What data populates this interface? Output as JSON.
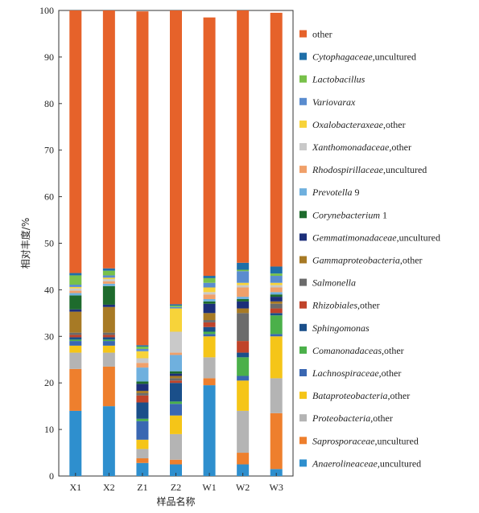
{
  "chart_data": {
    "type": "bar",
    "stacked": true,
    "xlabel": "样品名称",
    "ylabel": "相对丰度/%",
    "ylim": [
      0,
      100
    ],
    "yticks": [
      0,
      10,
      20,
      30,
      40,
      50,
      60,
      70,
      80,
      90,
      100
    ],
    "categories": [
      "X1",
      "X2",
      "Z1",
      "Z2",
      "W1",
      "W2",
      "W3"
    ],
    "legend_position": "right",
    "series": [
      {
        "name": "Anaerolineaceae,uncultured",
        "italic": "Anaerolineaceae",
        "rest": ",uncultured",
        "color": "#2e8fce",
        "values": [
          14.0,
          15.0,
          2.8,
          2.5,
          19.5,
          2.5,
          1.5
        ]
      },
      {
        "name": "Saprosporaceae,uncultured",
        "italic": "Saprosporaceae",
        "rest": ",uncultured",
        "color": "#ee7f2d",
        "values": [
          9.0,
          8.5,
          1.0,
          1.0,
          1.5,
          2.5,
          12.0
        ]
      },
      {
        "name": "Proteobacteria,other",
        "italic": "Proteobacteria",
        "rest": ",other",
        "color": "#b4b4b4",
        "values": [
          3.5,
          3.0,
          2.0,
          5.5,
          4.5,
          9.0,
          7.5
        ]
      },
      {
        "name": "Bataproteobacteria,other",
        "italic": "Bataproteobacteria",
        "rest": ",other",
        "color": "#f5c518",
        "values": [
          1.5,
          1.5,
          2.0,
          4.0,
          4.5,
          6.5,
          9.0
        ]
      },
      {
        "name": "Lachnospiraceae,other",
        "italic": "Lachnospiraceae",
        "rest": ",other",
        "color": "#3a67b2",
        "values": [
          1.0,
          1.0,
          4.0,
          2.5,
          0.5,
          1.0,
          0.5
        ]
      },
      {
        "name": "Comanonadaceas,other",
        "italic": "Comanonadaceas",
        "rest": ",other",
        "color": "#4bb04a",
        "values": [
          0.3,
          0.3,
          0.5,
          0.5,
          0.5,
          4.0,
          4.0
        ]
      },
      {
        "name": "Sphingomonas",
        "italic": "Sphingomonas",
        "rest": "",
        "color": "#1a4f8a",
        "values": [
          0.5,
          0.5,
          3.5,
          4.0,
          1.0,
          1.0,
          0.5
        ]
      },
      {
        "name": "Rhizobiales,other",
        "italic": "Rhizobiales",
        "rest": ",other",
        "color": "#c0432a",
        "values": [
          0.5,
          0.5,
          1.5,
          0.5,
          1.0,
          2.5,
          1.0
        ]
      },
      {
        "name": "Salmonella",
        "italic": "Salmonella",
        "rest": "",
        "color": "#6b6b6b",
        "values": [
          0.5,
          0.5,
          0.5,
          0.5,
          0.5,
          6.0,
          1.0
        ]
      },
      {
        "name": "Gammaproteobacteria,other",
        "italic": "Gammaproteobacteria",
        "rest": ",other",
        "color": "#a77a25",
        "values": [
          4.5,
          5.5,
          0.5,
          0.5,
          1.5,
          1.0,
          0.5
        ]
      },
      {
        "name": "Gemmatimonadaceae,uncultured",
        "italic": "Gemmatimonadaceae",
        "rest": ",uncultured",
        "color": "#1c2f7a",
        "values": [
          0.5,
          0.5,
          1.5,
          0.5,
          2.0,
          1.5,
          1.0
        ]
      },
      {
        "name": "Corynebacterium 1",
        "italic": "Corynebacterium",
        "rest": " 1",
        "color": "#1e6b2d",
        "values": [
          3.0,
          4.0,
          0.5,
          0.5,
          0.5,
          0.5,
          0.5
        ]
      },
      {
        "name": "Prevotella 9",
        "italic": "Prevotella",
        "rest": " 9",
        "color": "#6fb0de",
        "values": [
          0.5,
          0.5,
          3.0,
          3.5,
          0.5,
          0.5,
          0.5
        ]
      },
      {
        "name": "Rhodospirillaceae,uncultured",
        "italic": "Rhodospirillaceae",
        "rest": ",uncultured",
        "color": "#f0a06a",
        "values": [
          0.5,
          0.5,
          1.0,
          0.5,
          1.0,
          2.0,
          1.0
        ]
      },
      {
        "name": "Xanthomonadaceae,other",
        "italic": "Xanthomonadaceae",
        "rest": ",other",
        "color": "#c9c9c9",
        "values": [
          0.5,
          0.5,
          1.0,
          4.5,
          0.5,
          0.5,
          0.5
        ]
      },
      {
        "name": "Oxalobacteraxeae,other",
        "italic": "Oxalobacteraxeae",
        "rest": ",other",
        "color": "#f7d33a",
        "values": [
          0.3,
          0.3,
          1.5,
          5.0,
          1.0,
          0.5,
          0.5
        ]
      },
      {
        "name": "Variovarax",
        "italic": "Variovarax",
        "rest": "",
        "color": "#5a8ccf",
        "values": [
          0.5,
          0.5,
          0.5,
          0.3,
          1.0,
          2.5,
          1.5
        ]
      },
      {
        "name": "Lactobacillus",
        "italic": "Lactobacillus",
        "rest": "",
        "color": "#78c14a",
        "values": [
          2.0,
          1.0,
          0.5,
          0.3,
          1.0,
          0.3,
          0.5
        ]
      },
      {
        "name": "Cytophagaceae,uncultured",
        "italic": "Cytophagaceae",
        "rest": ",uncultured",
        "color": "#1f6fa8",
        "values": [
          0.5,
          0.5,
          0.3,
          0.3,
          0.5,
          1.5,
          1.5
        ]
      },
      {
        "name": "other",
        "italic": "",
        "rest": "other",
        "color": "#e6622a",
        "values": [
          56.5,
          55.7,
          71.7,
          64.3,
          55.5,
          56.7,
          54.5
        ]
      }
    ]
  }
}
